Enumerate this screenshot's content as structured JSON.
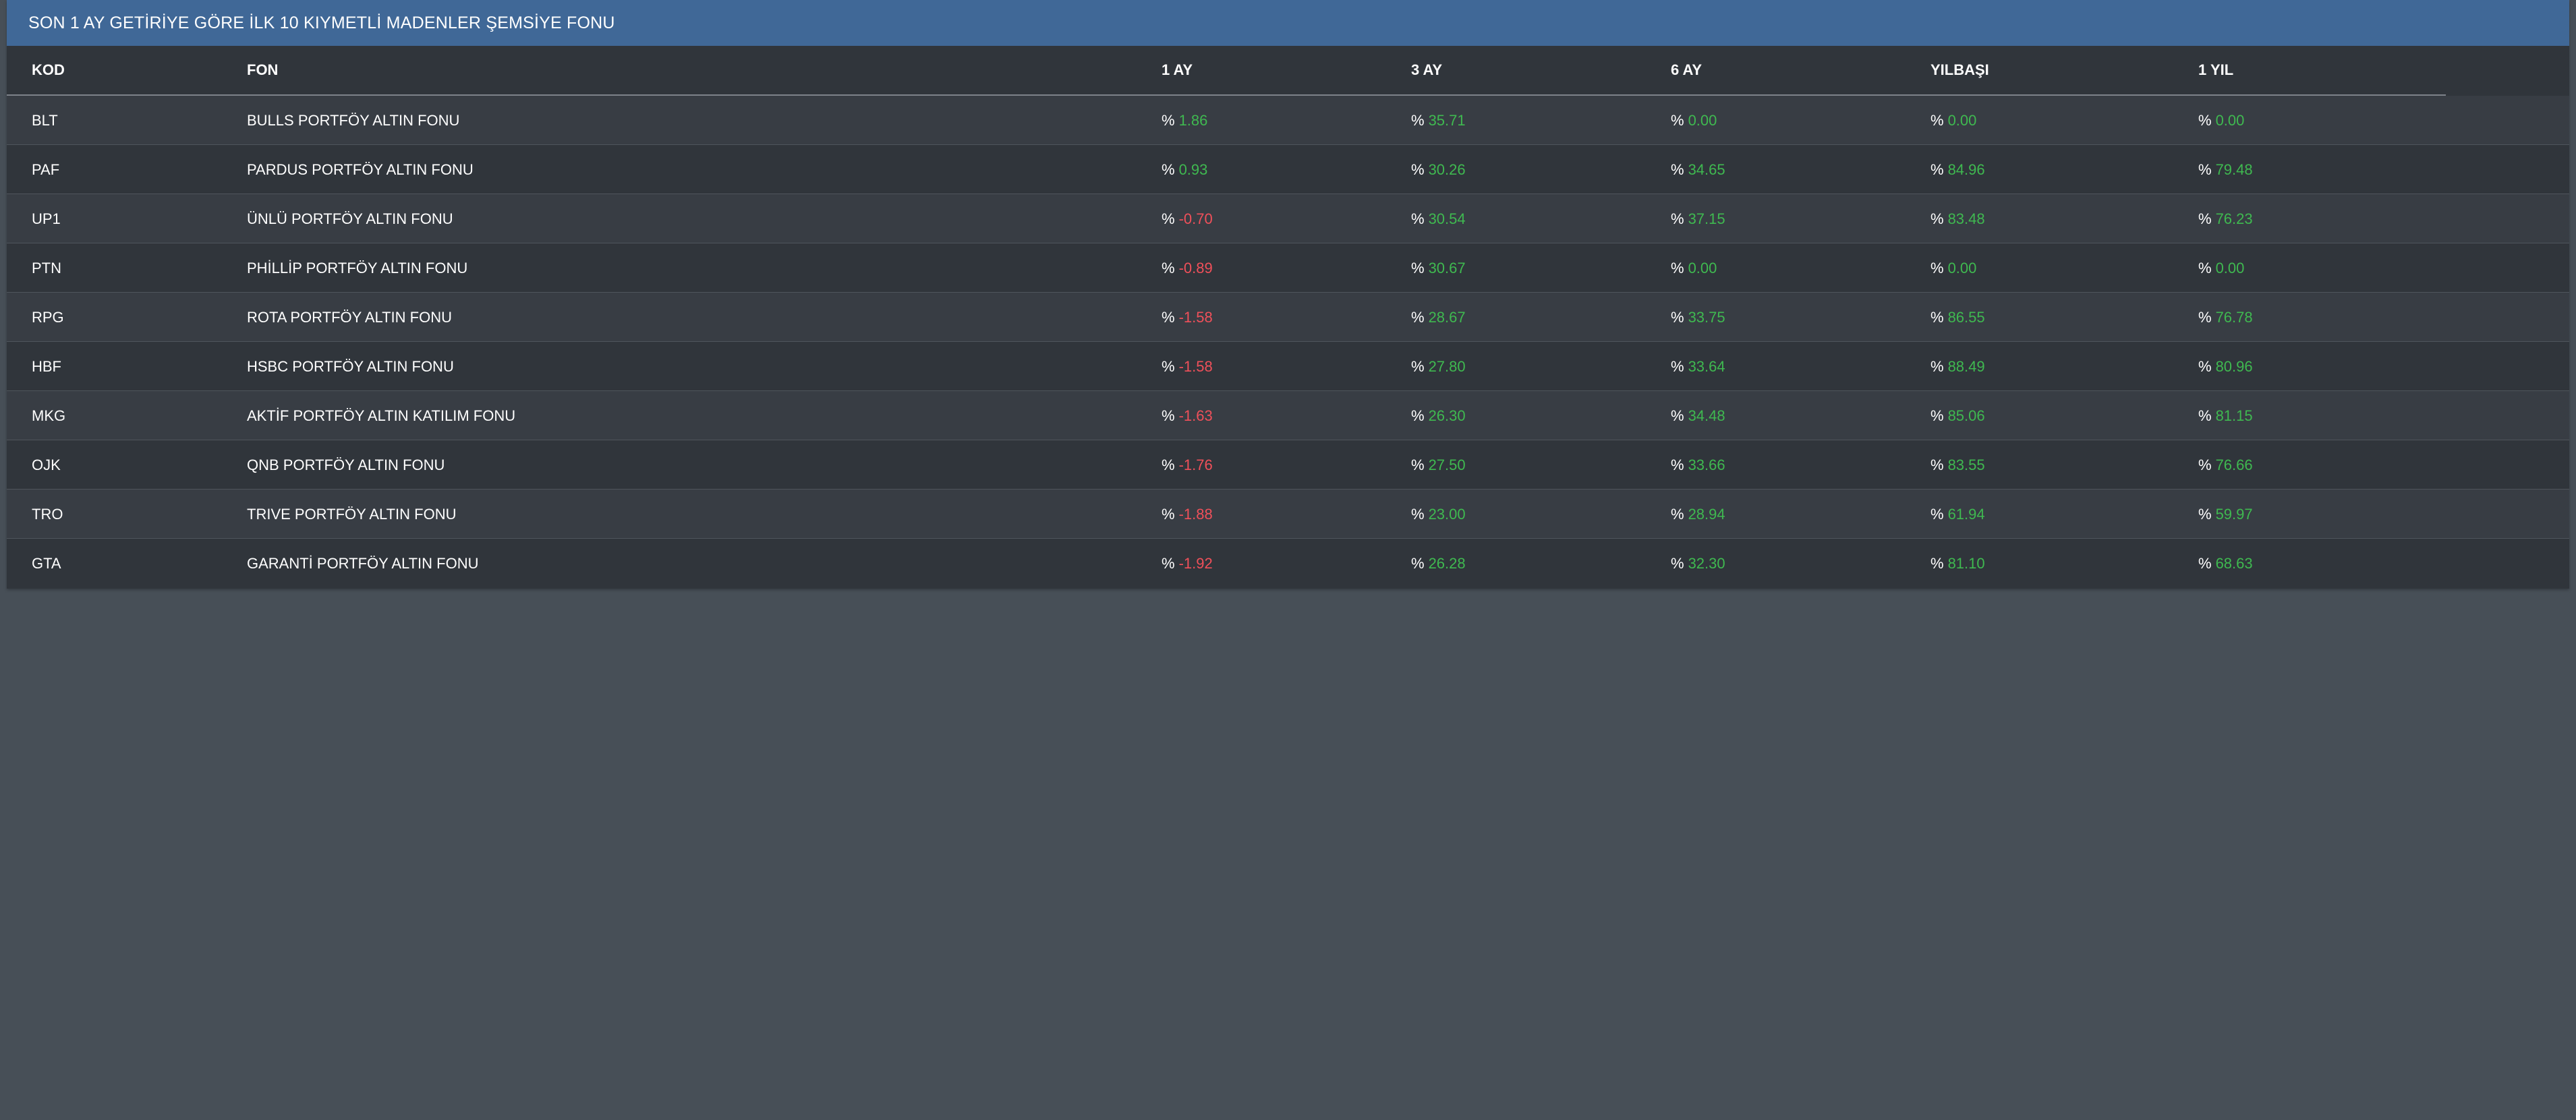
{
  "panel": {
    "title": "SON 1 AY GETİRİYE GÖRE İLK 10 KIYMETLİ MADENLER ŞEMSİYE FONU"
  },
  "table": {
    "headers": [
      "KOD",
      "FON",
      "1 AY",
      "3 AY",
      "6 AY",
      "YILBAŞI",
      "1 YIL"
    ],
    "percent_sign": "%",
    "colors": {
      "positive": "#3fb950",
      "negative": "#f0505a",
      "header_bg": "#406897"
    },
    "rows": [
      {
        "kod": "BLT",
        "fon": "BULLS PORTFÖY ALTIN FONU",
        "ay1": "1.86",
        "ay3": "35.71",
        "ay6": "0.00",
        "ytd": "0.00",
        "yil1": "0.00"
      },
      {
        "kod": "PAF",
        "fon": "PARDUS PORTFÖY ALTIN FONU",
        "ay1": "0.93",
        "ay3": "30.26",
        "ay6": "34.65",
        "ytd": "84.96",
        "yil1": "79.48"
      },
      {
        "kod": "UP1",
        "fon": "ÜNLÜ PORTFÖY ALTIN FONU",
        "ay1": "-0.70",
        "ay3": "30.54",
        "ay6": "37.15",
        "ytd": "83.48",
        "yil1": "76.23"
      },
      {
        "kod": "PTN",
        "fon": "PHİLLİP PORTFÖY ALTIN FONU",
        "ay1": "-0.89",
        "ay3": "30.67",
        "ay6": "0.00",
        "ytd": "0.00",
        "yil1": "0.00"
      },
      {
        "kod": "RPG",
        "fon": "ROTA PORTFÖY ALTIN FONU",
        "ay1": "-1.58",
        "ay3": "28.67",
        "ay6": "33.75",
        "ytd": "86.55",
        "yil1": "76.78"
      },
      {
        "kod": "HBF",
        "fon": "HSBC PORTFÖY ALTIN FONU",
        "ay1": "-1.58",
        "ay3": "27.80",
        "ay6": "33.64",
        "ytd": "88.49",
        "yil1": "80.96"
      },
      {
        "kod": "MKG",
        "fon": "AKTİF PORTFÖY ALTIN KATILIM FONU",
        "ay1": "-1.63",
        "ay3": "26.30",
        "ay6": "34.48",
        "ytd": "85.06",
        "yil1": "81.15"
      },
      {
        "kod": "OJK",
        "fon": "QNB PORTFÖY ALTIN FONU",
        "ay1": "-1.76",
        "ay3": "27.50",
        "ay6": "33.66",
        "ytd": "83.55",
        "yil1": "76.66"
      },
      {
        "kod": "TRO",
        "fon": "TRIVE PORTFÖY ALTIN FONU",
        "ay1": "-1.88",
        "ay3": "23.00",
        "ay6": "28.94",
        "ytd": "61.94",
        "yil1": "59.97"
      },
      {
        "kod": "GTA",
        "fon": "GARANTİ PORTFÖY ALTIN FONU",
        "ay1": "-1.92",
        "ay3": "26.28",
        "ay6": "32.30",
        "ytd": "81.10",
        "yil1": "68.63"
      }
    ]
  }
}
